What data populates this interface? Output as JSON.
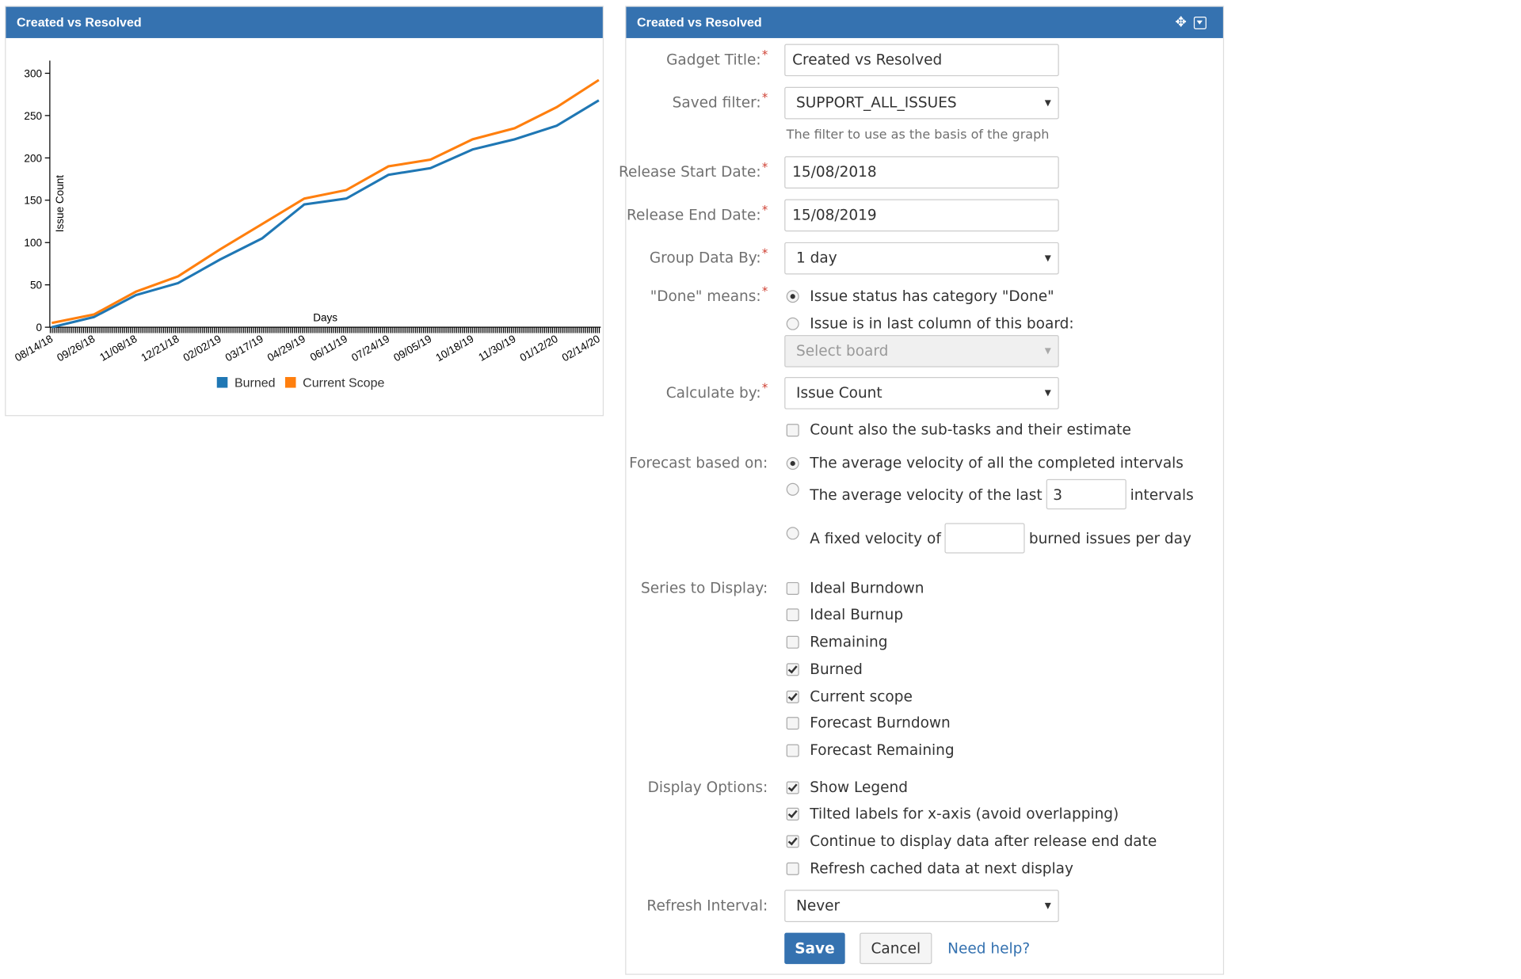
{
  "chart_panel": {
    "title": "Created vs Resolved"
  },
  "chart_data": {
    "type": "line",
    "y_label": "Issue Count",
    "x_label": "Days",
    "categories": [
      "08/14/18",
      "09/26/18",
      "11/08/18",
      "12/21/18",
      "02/02/19",
      "03/17/19",
      "04/29/19",
      "06/11/19",
      "07/24/19",
      "09/05/19",
      "10/18/19",
      "11/30/19",
      "01/12/20",
      "02/14/20"
    ],
    "series": [
      {
        "name": "Burned",
        "color": "#1f77b4",
        "values": [
          0,
          12,
          38,
          52,
          80,
          105,
          145,
          152,
          180,
          188,
          210,
          222,
          238,
          268
        ]
      },
      {
        "name": "Current Scope",
        "color": "#ff7f0e",
        "values": [
          5,
          15,
          42,
          60,
          92,
          122,
          152,
          162,
          190,
          198,
          222,
          235,
          260,
          292
        ]
      }
    ],
    "ylim": [
      0,
      315
    ],
    "yticks": [
      0,
      50,
      100,
      150,
      200,
      250,
      300
    ],
    "legend": "bottom"
  },
  "form": {
    "title": "Created vs Resolved",
    "required_mark": "*",
    "gadget_title": {
      "label": "Gadget Title:",
      "value": "Created vs Resolved"
    },
    "saved_filter": {
      "label": "Saved filter:",
      "value": "SUPPORT_ALL_ISSUES",
      "help": "The filter to use as the basis of the graph"
    },
    "release_start": {
      "label": "Release Start Date:",
      "value": "15/08/2018"
    },
    "release_end": {
      "label": "Release End Date:",
      "value": "15/08/2019"
    },
    "group_by": {
      "label": "Group Data By:",
      "value": "1 day"
    },
    "done_means": {
      "label": "\"Done\" means:",
      "options": [
        {
          "text": "Issue status has category \"Done\"",
          "checked": true
        },
        {
          "text": "Issue is in last column of this board:",
          "checked": false
        }
      ],
      "board_select": "Select board"
    },
    "calculate_by": {
      "label": "Calculate by:",
      "value": "Issue Count",
      "subtasks": {
        "text": "Count also the sub-tasks and their estimate",
        "checked": false
      }
    },
    "forecast": {
      "label": "Forecast based on:",
      "options": [
        {
          "text": "The average velocity of all the completed intervals",
          "checked": true
        },
        {
          "text": "The average velocity of the last",
          "value": "3",
          "suffix": "intervals",
          "checked": false
        },
        {
          "text": "A fixed velocity of",
          "suffix": "burned issues per day",
          "checked": false
        }
      ]
    },
    "series_to_display": {
      "label": "Series to Display:",
      "options": [
        {
          "text": "Ideal Burndown",
          "checked": false
        },
        {
          "text": "Ideal Burnup",
          "checked": false
        },
        {
          "text": "Remaining",
          "checked": false
        },
        {
          "text": "Burned",
          "checked": true
        },
        {
          "text": "Current scope",
          "checked": true
        },
        {
          "text": "Forecast Burndown",
          "checked": false
        },
        {
          "text": "Forecast Remaining",
          "checked": false
        }
      ]
    },
    "display_options": {
      "label": "Display Options:",
      "options": [
        {
          "text": "Show Legend",
          "checked": true
        },
        {
          "text": "Tilted labels for x-axis (avoid overlapping)",
          "checked": true
        },
        {
          "text": "Continue to display data after release end date",
          "checked": true
        },
        {
          "text": "Refresh cached data at next display",
          "checked": false
        }
      ]
    },
    "refresh_interval": {
      "label": "Refresh Interval:",
      "value": "Never"
    },
    "buttons": {
      "save": "Save",
      "cancel": "Cancel",
      "help": "Need help?"
    }
  }
}
